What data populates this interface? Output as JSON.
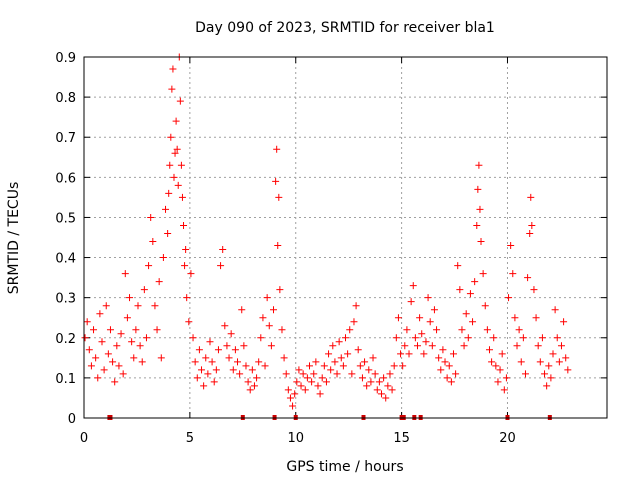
{
  "chart_data": {
    "type": "scatter",
    "title": "Day 090 of 2023, SRMTID for receiver bla1",
    "xlabel": "GPS time / hours",
    "ylabel": "SRMTID / TECUs",
    "xlim": [
      0,
      24.7
    ],
    "ylim": [
      0,
      0.9
    ],
    "xticks": [
      0,
      5,
      10,
      15,
      20
    ],
    "yticks": [
      0,
      0.1,
      0.2,
      0.3,
      0.4,
      0.5,
      0.6,
      0.7,
      0.8,
      0.9
    ],
    "xtick_labels": [
      "0",
      "5",
      "10",
      "15",
      "20"
    ],
    "ytick_labels": [
      "0",
      "0.1",
      "0.2",
      "0.3",
      "0.4",
      "0.5",
      "0.6",
      "0.7",
      "0.8",
      "0.9"
    ],
    "grid": true,
    "marker": "+",
    "color": "#ff0000",
    "floor_marks_color": "#cc0000",
    "series": [
      {
        "name": "SRMTID",
        "points": [
          [
            0.05,
            0.2
          ],
          [
            0.15,
            0.24
          ],
          [
            0.25,
            0.17
          ],
          [
            0.35,
            0.13
          ],
          [
            0.45,
            0.22
          ],
          [
            0.55,
            0.15
          ],
          [
            0.65,
            0.1
          ],
          [
            0.75,
            0.26
          ],
          [
            0.85,
            0.19
          ],
          [
            0.95,
            0.12
          ],
          [
            1.05,
            0.28
          ],
          [
            1.15,
            0.16
          ],
          [
            1.25,
            0.22
          ],
          [
            1.35,
            0.14
          ],
          [
            1.45,
            0.09
          ],
          [
            1.55,
            0.18
          ],
          [
            1.65,
            0.13
          ],
          [
            1.75,
            0.21
          ],
          [
            1.85,
            0.11
          ],
          [
            1.95,
            0.36
          ],
          [
            2.05,
            0.25
          ],
          [
            2.15,
            0.3
          ],
          [
            2.25,
            0.19
          ],
          [
            2.35,
            0.15
          ],
          [
            2.45,
            0.22
          ],
          [
            2.55,
            0.28
          ],
          [
            2.65,
            0.18
          ],
          [
            2.75,
            0.14
          ],
          [
            2.85,
            0.32
          ],
          [
            2.95,
            0.2
          ],
          [
            3.05,
            0.38
          ],
          [
            3.15,
            0.5
          ],
          [
            3.25,
            0.44
          ],
          [
            3.35,
            0.28
          ],
          [
            3.45,
            0.22
          ],
          [
            3.55,
            0.34
          ],
          [
            3.65,
            0.15
          ],
          [
            3.75,
            0.4
          ],
          [
            3.85,
            0.52
          ],
          [
            3.95,
            0.46
          ],
          [
            4.0,
            0.56
          ],
          [
            4.05,
            0.63
          ],
          [
            4.1,
            0.7
          ],
          [
            4.15,
            0.82
          ],
          [
            4.2,
            0.87
          ],
          [
            4.25,
            0.6
          ],
          [
            4.3,
            0.66
          ],
          [
            4.35,
            0.74
          ],
          [
            4.4,
            0.67
          ],
          [
            4.45,
            0.58
          ],
          [
            4.5,
            0.9
          ],
          [
            4.55,
            0.79
          ],
          [
            4.6,
            0.63
          ],
          [
            4.65,
            0.55
          ],
          [
            4.7,
            0.48
          ],
          [
            4.75,
            0.38
          ],
          [
            4.8,
            0.42
          ],
          [
            4.85,
            0.3
          ],
          [
            4.95,
            0.24
          ],
          [
            5.05,
            0.36
          ],
          [
            5.15,
            0.2
          ],
          [
            5.25,
            0.14
          ],
          [
            5.35,
            0.1
          ],
          [
            5.45,
            0.17
          ],
          [
            5.55,
            0.12
          ],
          [
            5.65,
            0.08
          ],
          [
            5.75,
            0.15
          ],
          [
            5.85,
            0.11
          ],
          [
            5.95,
            0.19
          ],
          [
            6.05,
            0.14
          ],
          [
            6.15,
            0.09
          ],
          [
            6.25,
            0.12
          ],
          [
            6.35,
            0.17
          ],
          [
            6.45,
            0.38
          ],
          [
            6.55,
            0.42
          ],
          [
            6.65,
            0.23
          ],
          [
            6.75,
            0.18
          ],
          [
            6.85,
            0.15
          ],
          [
            6.95,
            0.21
          ],
          [
            7.05,
            0.12
          ],
          [
            7.15,
            0.17
          ],
          [
            7.25,
            0.14
          ],
          [
            7.35,
            0.11
          ],
          [
            7.45,
            0.27
          ],
          [
            7.55,
            0.18
          ],
          [
            7.65,
            0.13
          ],
          [
            7.75,
            0.09
          ],
          [
            7.85,
            0.07
          ],
          [
            7.95,
            0.12
          ],
          [
            8.05,
            0.08
          ],
          [
            8.15,
            0.1
          ],
          [
            8.25,
            0.14
          ],
          [
            8.35,
            0.2
          ],
          [
            8.45,
            0.25
          ],
          [
            8.55,
            0.13
          ],
          [
            8.65,
            0.3
          ],
          [
            8.75,
            0.23
          ],
          [
            8.85,
            0.18
          ],
          [
            8.95,
            0.27
          ],
          [
            9.05,
            0.59
          ],
          [
            9.1,
            0.67
          ],
          [
            9.15,
            0.43
          ],
          [
            9.2,
            0.55
          ],
          [
            9.25,
            0.32
          ],
          [
            9.35,
            0.22
          ],
          [
            9.45,
            0.15
          ],
          [
            9.55,
            0.11
          ],
          [
            9.65,
            0.07
          ],
          [
            9.75,
            0.05
          ],
          [
            9.85,
            0.03
          ],
          [
            9.95,
            0.06
          ],
          [
            10.05,
            0.09
          ],
          [
            10.15,
            0.12
          ],
          [
            10.25,
            0.08
          ],
          [
            10.35,
            0.11
          ],
          [
            10.45,
            0.07
          ],
          [
            10.55,
            0.1
          ],
          [
            10.65,
            0.13
          ],
          [
            10.75,
            0.09
          ],
          [
            10.85,
            0.11
          ],
          [
            10.95,
            0.14
          ],
          [
            11.05,
            0.08
          ],
          [
            11.15,
            0.06
          ],
          [
            11.25,
            0.1
          ],
          [
            11.35,
            0.13
          ],
          [
            11.45,
            0.09
          ],
          [
            11.55,
            0.16
          ],
          [
            11.65,
            0.12
          ],
          [
            11.75,
            0.18
          ],
          [
            11.85,
            0.14
          ],
          [
            11.95,
            0.11
          ],
          [
            12.05,
            0.19
          ],
          [
            12.15,
            0.15
          ],
          [
            12.25,
            0.13
          ],
          [
            12.35,
            0.2
          ],
          [
            12.45,
            0.16
          ],
          [
            12.55,
            0.22
          ],
          [
            12.65,
            0.11
          ],
          [
            12.75,
            0.24
          ],
          [
            12.85,
            0.28
          ],
          [
            12.95,
            0.17
          ],
          [
            13.05,
            0.13
          ],
          [
            13.15,
            0.1
          ],
          [
            13.25,
            0.14
          ],
          [
            13.35,
            0.08
          ],
          [
            13.45,
            0.12
          ],
          [
            13.55,
            0.09
          ],
          [
            13.65,
            0.15
          ],
          [
            13.75,
            0.11
          ],
          [
            13.85,
            0.07
          ],
          [
            13.95,
            0.09
          ],
          [
            14.05,
            0.06
          ],
          [
            14.15,
            0.1
          ],
          [
            14.25,
            0.05
          ],
          [
            14.35,
            0.08
          ],
          [
            14.45,
            0.11
          ],
          [
            14.55,
            0.07
          ],
          [
            14.65,
            0.13
          ],
          [
            14.75,
            0.2
          ],
          [
            14.85,
            0.25
          ],
          [
            14.95,
            0.16
          ],
          [
            15.05,
            0.13
          ],
          [
            15.15,
            0.18
          ],
          [
            15.25,
            0.22
          ],
          [
            15.35,
            0.16
          ],
          [
            15.45,
            0.29
          ],
          [
            15.55,
            0.33
          ],
          [
            15.65,
            0.2
          ],
          [
            15.75,
            0.18
          ],
          [
            15.85,
            0.25
          ],
          [
            15.95,
            0.21
          ],
          [
            16.05,
            0.16
          ],
          [
            16.15,
            0.19
          ],
          [
            16.25,
            0.3
          ],
          [
            16.35,
            0.24
          ],
          [
            16.45,
            0.18
          ],
          [
            16.55,
            0.27
          ],
          [
            16.65,
            0.22
          ],
          [
            16.75,
            0.15
          ],
          [
            16.85,
            0.12
          ],
          [
            16.95,
            0.17
          ],
          [
            17.05,
            0.14
          ],
          [
            17.15,
            0.1
          ],
          [
            17.25,
            0.13
          ],
          [
            17.35,
            0.09
          ],
          [
            17.45,
            0.16
          ],
          [
            17.55,
            0.11
          ],
          [
            17.65,
            0.38
          ],
          [
            17.75,
            0.32
          ],
          [
            17.85,
            0.22
          ],
          [
            17.95,
            0.18
          ],
          [
            18.05,
            0.26
          ],
          [
            18.15,
            0.2
          ],
          [
            18.25,
            0.31
          ],
          [
            18.35,
            0.24
          ],
          [
            18.45,
            0.34
          ],
          [
            18.55,
            0.48
          ],
          [
            18.6,
            0.57
          ],
          [
            18.65,
            0.63
          ],
          [
            18.7,
            0.52
          ],
          [
            18.75,
            0.44
          ],
          [
            18.85,
            0.36
          ],
          [
            18.95,
            0.28
          ],
          [
            19.05,
            0.22
          ],
          [
            19.15,
            0.17
          ],
          [
            19.25,
            0.14
          ],
          [
            19.35,
            0.2
          ],
          [
            19.45,
            0.13
          ],
          [
            19.55,
            0.09
          ],
          [
            19.65,
            0.12
          ],
          [
            19.75,
            0.16
          ],
          [
            19.85,
            0.07
          ],
          [
            19.95,
            0.1
          ],
          [
            20.05,
            0.3
          ],
          [
            20.15,
            0.43
          ],
          [
            20.25,
            0.36
          ],
          [
            20.35,
            0.25
          ],
          [
            20.45,
            0.18
          ],
          [
            20.55,
            0.22
          ],
          [
            20.65,
            0.14
          ],
          [
            20.75,
            0.2
          ],
          [
            20.85,
            0.11
          ],
          [
            20.95,
            0.35
          ],
          [
            21.05,
            0.46
          ],
          [
            21.1,
            0.55
          ],
          [
            21.15,
            0.48
          ],
          [
            21.25,
            0.32
          ],
          [
            21.35,
            0.25
          ],
          [
            21.45,
            0.18
          ],
          [
            21.55,
            0.14
          ],
          [
            21.65,
            0.2
          ],
          [
            21.75,
            0.11
          ],
          [
            21.85,
            0.08
          ],
          [
            21.95,
            0.13
          ],
          [
            22.05,
            0.1
          ],
          [
            22.15,
            0.16
          ],
          [
            22.25,
            0.27
          ],
          [
            22.35,
            0.2
          ],
          [
            22.45,
            0.14
          ],
          [
            22.55,
            0.18
          ],
          [
            22.65,
            0.24
          ],
          [
            22.75,
            0.15
          ],
          [
            22.85,
            0.12
          ]
        ],
        "floor_marks": [
          1.2,
          1.25,
          7.5,
          9.0,
          10.0,
          13.2,
          15.0,
          15.1,
          15.6,
          15.9,
          20.0,
          22.0
        ]
      }
    ]
  }
}
